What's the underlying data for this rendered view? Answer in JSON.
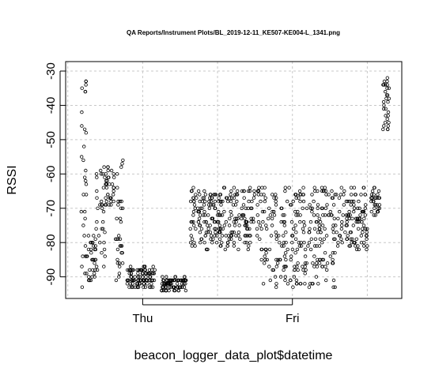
{
  "chart_data": {
    "type": "scatter",
    "title": "QA Reports/Instrument Plots/BL_2019-12-11_KE507-KE004-L_1341.png",
    "xlabel": "beacon_logger_data_plot$datetime",
    "ylabel": "RSSI",
    "xlim": [
      "2019-12-11 13:41",
      "2019-12-13 15:30"
    ],
    "ylim": [
      -94,
      -30
    ],
    "x_ticks": [
      {
        "label": "Thu",
        "value": "2019-12-12 00:00"
      },
      {
        "label": "Fri",
        "value": "2019-12-13 00:00"
      }
    ],
    "y_ticks": [
      -90,
      -80,
      -70,
      -60,
      -50,
      -40,
      -30
    ],
    "y_tick_labels": [
      "-90",
      "-80",
      "-70",
      "-60",
      "-50",
      "-40",
      "-30"
    ],
    "grid": true,
    "marker": "open-circle",
    "segments": [
      {
        "t_start": "2019-12-11 14:10",
        "t_end": "2019-12-11 15:00",
        "y_min": -93,
        "y_max": -32
      },
      {
        "t_start": "2019-12-11 15:00",
        "t_end": "2019-12-11 16:30",
        "y_min": -92,
        "y_max": -78
      },
      {
        "t_start": "2019-12-11 16:30",
        "t_end": "2019-12-11 18:00",
        "y_min": -88,
        "y_max": -58
      },
      {
        "t_start": "2019-12-11 18:00",
        "t_end": "2019-12-11 19:30",
        "y_min": -70,
        "y_max": -58
      },
      {
        "t_start": "2019-12-11 19:30",
        "t_end": "2019-12-11 21:00",
        "y_min": -92,
        "y_max": -51
      },
      {
        "t_start": "2019-12-11 21:30",
        "t_end": "2019-12-12 02:00",
        "y_min": -93,
        "y_max": -87
      },
      {
        "t_start": "2019-12-12 03:00",
        "t_end": "2019-12-12 07:00",
        "y_min": -94,
        "y_max": -90
      },
      {
        "t_start": "2019-12-12 07:30",
        "t_end": "2019-12-12 19:00",
        "y_min": -82,
        "y_max": -64
      },
      {
        "t_start": "2019-12-12 19:00",
        "t_end": "2019-12-13 07:00",
        "y_min": -93,
        "y_max": -64
      },
      {
        "t_start": "2019-12-13 07:00",
        "t_end": "2019-12-13 12:00",
        "y_min": -82,
        "y_max": -64
      },
      {
        "t_start": "2019-12-13 12:30",
        "t_end": "2019-12-13 14:00",
        "y_min": -72,
        "y_max": -64
      },
      {
        "t_start": "2019-12-13 14:30",
        "t_end": "2019-12-13 15:30",
        "y_min": -47,
        "y_max": -32
      }
    ]
  }
}
